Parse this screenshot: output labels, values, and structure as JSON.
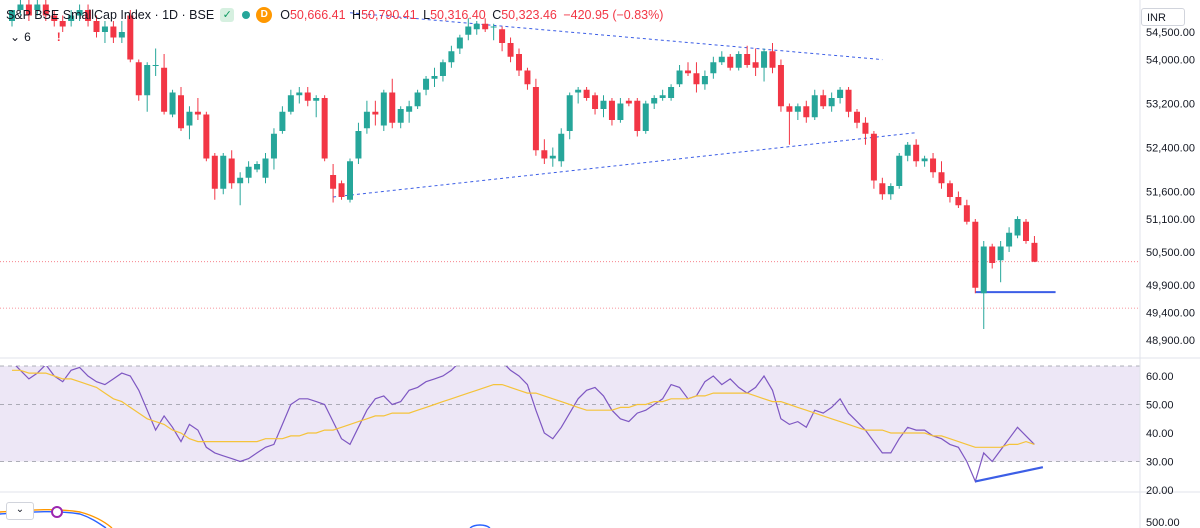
{
  "header": {
    "symbol": "S&P BSE SmallCap Index · 1D · BSE",
    "open_label": "O",
    "open": "50,666.41",
    "high_label": "H",
    "high": "50,790.41",
    "low_label": "L",
    "low": "50,316.40",
    "close_label": "C",
    "close": "50,323.46",
    "change": "−420.95 (−0.83%)",
    "indicator_count": "6",
    "warning": "!",
    "d_badge": "D",
    "currency": "INR",
    "pane_collapse_icon": "chevron-down-icon"
  },
  "colors": {
    "up": "#26a69a",
    "down": "#f23645",
    "rsi": "#7e57c2",
    "rsi_ma": "#f5c33a",
    "trend": "#3c5ee6",
    "rsi_band": "#ede7f6"
  },
  "chart_data": [
    {
      "type": "candlestick",
      "title": "S&P BSE SmallCap Index · 1D · BSE",
      "ylim": [
        48600,
        54800
      ],
      "yticks": [
        "54,500.00",
        "54,000.00",
        "53,200.00",
        "52,400.00",
        "51,600.00",
        "51,100.00",
        "50,500.00",
        "49,900.00",
        "49,400.00",
        "48,900.00"
      ],
      "price_lines": [
        50323.46,
        49480
      ],
      "candles": [
        {
          "o": 54700,
          "h": 54900,
          "l": 54600,
          "c": 54900
        },
        {
          "o": 54900,
          "h": 55100,
          "l": 54800,
          "c": 55000
        },
        {
          "o": 55000,
          "h": 55100,
          "l": 54700,
          "c": 54800
        },
        {
          "o": 54900,
          "h": 55100,
          "l": 54800,
          "c": 55000
        },
        {
          "o": 55000,
          "h": 55100,
          "l": 54700,
          "c": 54800
        },
        {
          "o": 54800,
          "h": 54900,
          "l": 54600,
          "c": 54700
        },
        {
          "o": 54700,
          "h": 54800,
          "l": 54500,
          "c": 54600
        },
        {
          "o": 54700,
          "h": 54900,
          "l": 54600,
          "c": 54800
        },
        {
          "o": 54800,
          "h": 55000,
          "l": 54700,
          "c": 54900
        },
        {
          "o": 54900,
          "h": 55000,
          "l": 54600,
          "c": 54700
        },
        {
          "o": 54700,
          "h": 54800,
          "l": 54400,
          "c": 54500
        },
        {
          "o": 54500,
          "h": 54700,
          "l": 54300,
          "c": 54600
        },
        {
          "o": 54600,
          "h": 54700,
          "l": 54300,
          "c": 54400
        },
        {
          "o": 54400,
          "h": 54700,
          "l": 54300,
          "c": 54500
        },
        {
          "o": 54800,
          "h": 54900,
          "l": 53950,
          "c": 54000
        },
        {
          "o": 53950,
          "h": 54000,
          "l": 53250,
          "c": 53350
        },
        {
          "o": 53350,
          "h": 53950,
          "l": 53050,
          "c": 53900
        },
        {
          "o": 53900,
          "h": 54200,
          "l": 53700,
          "c": 53900
        },
        {
          "o": 53850,
          "h": 54100,
          "l": 53000,
          "c": 53050
        },
        {
          "o": 53000,
          "h": 53450,
          "l": 52950,
          "c": 53400
        },
        {
          "o": 53350,
          "h": 53500,
          "l": 52700,
          "c": 52750
        },
        {
          "o": 52800,
          "h": 53150,
          "l": 52550,
          "c": 53050
        },
        {
          "o": 53050,
          "h": 53300,
          "l": 52900,
          "c": 53000
        },
        {
          "o": 53000,
          "h": 53050,
          "l": 52150,
          "c": 52200
        },
        {
          "o": 52250,
          "h": 52300,
          "l": 51450,
          "c": 51650
        },
        {
          "o": 51650,
          "h": 52300,
          "l": 51550,
          "c": 52250
        },
        {
          "o": 52200,
          "h": 52350,
          "l": 51650,
          "c": 51750
        },
        {
          "o": 51750,
          "h": 51950,
          "l": 51350,
          "c": 51850
        },
        {
          "o": 51850,
          "h": 52150,
          "l": 51750,
          "c": 52050
        },
        {
          "o": 52000,
          "h": 52150,
          "l": 51950,
          "c": 52100
        },
        {
          "o": 51850,
          "h": 52300,
          "l": 51750,
          "c": 52200
        },
        {
          "o": 52200,
          "h": 52750,
          "l": 52000,
          "c": 52650
        },
        {
          "o": 52700,
          "h": 53150,
          "l": 52650,
          "c": 53050
        },
        {
          "o": 53050,
          "h": 53450,
          "l": 53000,
          "c": 53350
        },
        {
          "o": 53350,
          "h": 53500,
          "l": 53200,
          "c": 53400
        },
        {
          "o": 53400,
          "h": 53500,
          "l": 53150,
          "c": 53250
        },
        {
          "o": 53250,
          "h": 53350,
          "l": 52950,
          "c": 53300
        },
        {
          "o": 53300,
          "h": 53350,
          "l": 52150,
          "c": 52200
        },
        {
          "o": 51900,
          "h": 52100,
          "l": 51400,
          "c": 51650
        },
        {
          "o": 51750,
          "h": 51800,
          "l": 51450,
          "c": 51500
        },
        {
          "o": 51450,
          "h": 52200,
          "l": 51400,
          "c": 52150
        },
        {
          "o": 52200,
          "h": 52850,
          "l": 52100,
          "c": 52700
        },
        {
          "o": 52750,
          "h": 53250,
          "l": 52650,
          "c": 53050
        },
        {
          "o": 53050,
          "h": 53250,
          "l": 52800,
          "c": 53000
        },
        {
          "o": 52800,
          "h": 53450,
          "l": 52700,
          "c": 53400
        },
        {
          "o": 53400,
          "h": 53650,
          "l": 52750,
          "c": 52850
        },
        {
          "o": 52850,
          "h": 53150,
          "l": 52750,
          "c": 53100
        },
        {
          "o": 53050,
          "h": 53250,
          "l": 52850,
          "c": 53150
        },
        {
          "o": 53150,
          "h": 53450,
          "l": 53100,
          "c": 53400
        },
        {
          "o": 53450,
          "h": 53700,
          "l": 53350,
          "c": 53650
        },
        {
          "o": 53650,
          "h": 53850,
          "l": 53500,
          "c": 53700
        },
        {
          "o": 53700,
          "h": 54000,
          "l": 53600,
          "c": 53950
        },
        {
          "o": 53950,
          "h": 54250,
          "l": 53850,
          "c": 54150
        },
        {
          "o": 54200,
          "h": 54450,
          "l": 54100,
          "c": 54400
        },
        {
          "o": 54450,
          "h": 54750,
          "l": 54350,
          "c": 54600
        },
        {
          "o": 54550,
          "h": 54700,
          "l": 54450,
          "c": 54650
        },
        {
          "o": 54650,
          "h": 54750,
          "l": 54500,
          "c": 54550
        },
        {
          "o": 54600,
          "h": 54650,
          "l": 54350,
          "c": 54600
        },
        {
          "o": 54550,
          "h": 54600,
          "l": 54150,
          "c": 54300
        },
        {
          "o": 54300,
          "h": 54400,
          "l": 53950,
          "c": 54050
        },
        {
          "o": 54100,
          "h": 54200,
          "l": 53700,
          "c": 53800
        },
        {
          "o": 53800,
          "h": 53850,
          "l": 53450,
          "c": 53550
        },
        {
          "o": 53500,
          "h": 53650,
          "l": 52250,
          "c": 52350
        },
        {
          "o": 52350,
          "h": 52550,
          "l": 52100,
          "c": 52200
        },
        {
          "o": 52200,
          "h": 52400,
          "l": 52050,
          "c": 52250
        },
        {
          "o": 52150,
          "h": 52750,
          "l": 52050,
          "c": 52650
        },
        {
          "o": 52700,
          "h": 53400,
          "l": 52550,
          "c": 53350
        },
        {
          "o": 53400,
          "h": 53500,
          "l": 53200,
          "c": 53450
        },
        {
          "o": 53450,
          "h": 53500,
          "l": 53250,
          "c": 53300
        },
        {
          "o": 53350,
          "h": 53400,
          "l": 53000,
          "c": 53100
        },
        {
          "o": 53100,
          "h": 53350,
          "l": 52950,
          "c": 53250
        },
        {
          "o": 53250,
          "h": 53300,
          "l": 52800,
          "c": 52900
        },
        {
          "o": 52900,
          "h": 53300,
          "l": 52850,
          "c": 53200
        },
        {
          "o": 53250,
          "h": 53300,
          "l": 53150,
          "c": 53200
        },
        {
          "o": 53250,
          "h": 53300,
          "l": 52600,
          "c": 52700
        },
        {
          "o": 52700,
          "h": 53250,
          "l": 52650,
          "c": 53200
        },
        {
          "o": 53200,
          "h": 53350,
          "l": 53100,
          "c": 53300
        },
        {
          "o": 53300,
          "h": 53450,
          "l": 53250,
          "c": 53350
        },
        {
          "o": 53300,
          "h": 53550,
          "l": 53250,
          "c": 53500
        },
        {
          "o": 53550,
          "h": 53900,
          "l": 53500,
          "c": 53800
        },
        {
          "o": 53800,
          "h": 53950,
          "l": 53700,
          "c": 53750
        },
        {
          "o": 53750,
          "h": 53950,
          "l": 53400,
          "c": 53550
        },
        {
          "o": 53550,
          "h": 53800,
          "l": 53450,
          "c": 53700
        },
        {
          "o": 53750,
          "h": 54050,
          "l": 53650,
          "c": 53950
        },
        {
          "o": 53950,
          "h": 54150,
          "l": 53900,
          "c": 54050
        },
        {
          "o": 54050,
          "h": 54100,
          "l": 53800,
          "c": 53850
        },
        {
          "o": 53850,
          "h": 54150,
          "l": 53800,
          "c": 54100
        },
        {
          "o": 54100,
          "h": 54250,
          "l": 53850,
          "c": 53900
        },
        {
          "o": 53950,
          "h": 54200,
          "l": 53700,
          "c": 53850
        },
        {
          "o": 53850,
          "h": 54200,
          "l": 53600,
          "c": 54150
        },
        {
          "o": 54150,
          "h": 54300,
          "l": 53750,
          "c": 53850
        },
        {
          "o": 53900,
          "h": 54000,
          "l": 53050,
          "c": 53150
        },
        {
          "o": 53150,
          "h": 53200,
          "l": 52450,
          "c": 53050
        },
        {
          "o": 53050,
          "h": 53200,
          "l": 52900,
          "c": 53150
        },
        {
          "o": 53150,
          "h": 53250,
          "l": 52850,
          "c": 52950
        },
        {
          "o": 52950,
          "h": 53450,
          "l": 52900,
          "c": 53350
        },
        {
          "o": 53350,
          "h": 53450,
          "l": 53100,
          "c": 53150
        },
        {
          "o": 53150,
          "h": 53400,
          "l": 53050,
          "c": 53300
        },
        {
          "o": 53300,
          "h": 53500,
          "l": 53200,
          "c": 53450
        },
        {
          "o": 53450,
          "h": 53500,
          "l": 52950,
          "c": 53050
        },
        {
          "o": 53050,
          "h": 53100,
          "l": 52750,
          "c": 52850
        },
        {
          "o": 52850,
          "h": 52950,
          "l": 52450,
          "c": 52650
        },
        {
          "o": 52650,
          "h": 52700,
          "l": 51650,
          "c": 51800
        },
        {
          "o": 51750,
          "h": 51850,
          "l": 51450,
          "c": 51550
        },
        {
          "o": 51550,
          "h": 51750,
          "l": 51450,
          "c": 51700
        },
        {
          "o": 51700,
          "h": 52300,
          "l": 51650,
          "c": 52250
        },
        {
          "o": 52250,
          "h": 52500,
          "l": 52150,
          "c": 52450
        },
        {
          "o": 52450,
          "h": 52550,
          "l": 52050,
          "c": 52150
        },
        {
          "o": 52150,
          "h": 52250,
          "l": 52050,
          "c": 52200
        },
        {
          "o": 52200,
          "h": 52300,
          "l": 51850,
          "c": 51950
        },
        {
          "o": 51950,
          "h": 52150,
          "l": 51650,
          "c": 51750
        },
        {
          "o": 51750,
          "h": 51800,
          "l": 51400,
          "c": 51500
        },
        {
          "o": 51500,
          "h": 51600,
          "l": 51300,
          "c": 51350
        },
        {
          "o": 51350,
          "h": 51450,
          "l": 51000,
          "c": 51050
        },
        {
          "o": 51050,
          "h": 51100,
          "l": 49750,
          "c": 49850
        },
        {
          "o": 49750,
          "h": 50700,
          "l": 49100,
          "c": 50600
        },
        {
          "o": 50600,
          "h": 50650,
          "l": 50200,
          "c": 50300
        },
        {
          "o": 50350,
          "h": 50700,
          "l": 49950,
          "c": 50600
        },
        {
          "o": 50600,
          "h": 50950,
          "l": 50500,
          "c": 50850
        },
        {
          "o": 50800,
          "h": 51150,
          "l": 50750,
          "c": 51100
        },
        {
          "o": 51050,
          "h": 51100,
          "l": 50650,
          "c": 50700
        },
        {
          "o": 50666.41,
          "h": 50790.41,
          "l": 50316.4,
          "c": 50323.46
        }
      ]
    },
    {
      "type": "line",
      "title": "RSI",
      "ylim": [
        15,
        66
      ],
      "yticks": [
        "60.00",
        "50.00",
        "40.00",
        "30.00",
        "20.00"
      ],
      "bands": [
        70,
        50,
        30
      ],
      "series": [
        {
          "key": "rsi",
          "values": [
            65,
            62,
            59,
            61,
            64,
            60,
            58,
            62,
            63,
            60,
            58,
            57,
            59,
            61,
            60,
            55,
            48,
            41,
            46,
            42,
            37,
            43,
            41,
            35,
            33,
            32,
            31,
            30,
            31,
            33,
            35,
            36,
            43,
            50,
            52,
            52,
            51,
            50,
            44,
            38,
            36,
            42,
            48,
            52,
            53,
            50,
            51,
            55,
            56,
            58,
            59,
            60,
            62,
            65,
            68,
            70,
            70,
            68,
            65,
            62,
            60,
            57,
            48,
            40,
            38,
            42,
            47,
            52,
            55,
            56,
            53,
            48,
            45,
            44,
            47,
            48,
            50,
            52,
            57,
            56,
            52,
            53,
            58,
            60,
            57,
            59,
            56,
            54,
            56,
            60,
            55,
            45,
            43,
            44,
            42,
            48,
            47,
            49,
            52,
            47,
            44,
            41,
            37,
            33,
            33,
            38,
            42,
            41,
            41,
            39,
            38,
            36,
            35,
            30,
            23,
            33,
            30,
            34,
            38,
            42,
            39,
            36
          ]
        },
        {
          "key": "rsi_ma",
          "values": [
            62,
            62,
            61,
            61,
            61,
            60,
            59,
            59,
            58,
            57,
            56,
            54,
            52,
            51,
            49,
            47,
            45,
            44,
            43,
            41,
            40,
            38,
            37,
            37,
            37,
            37,
            37,
            37,
            37,
            37,
            38,
            38,
            38,
            39,
            39,
            40,
            40,
            41,
            41,
            42,
            43,
            44,
            45,
            46,
            46,
            47,
            47,
            47,
            48,
            49,
            50,
            51,
            52,
            53,
            54,
            55,
            56,
            57,
            57,
            56,
            55,
            54,
            54,
            53,
            52,
            51,
            50,
            49,
            48,
            48,
            48,
            48,
            49,
            49,
            50,
            50,
            51,
            51,
            52,
            52,
            52,
            53,
            53,
            54,
            54,
            54,
            54,
            54,
            53,
            52,
            51,
            51,
            50,
            49,
            48,
            47,
            46,
            45,
            44,
            43,
            42,
            41,
            41,
            41,
            40,
            40,
            40,
            40,
            40,
            39,
            39,
            38,
            37,
            36,
            35,
            35,
            35,
            35,
            36,
            36,
            37,
            36
          ]
        }
      ],
      "trendline": {
        "from": [
          114,
          23
        ],
        "to": [
          122,
          28
        ]
      }
    }
  ]
}
